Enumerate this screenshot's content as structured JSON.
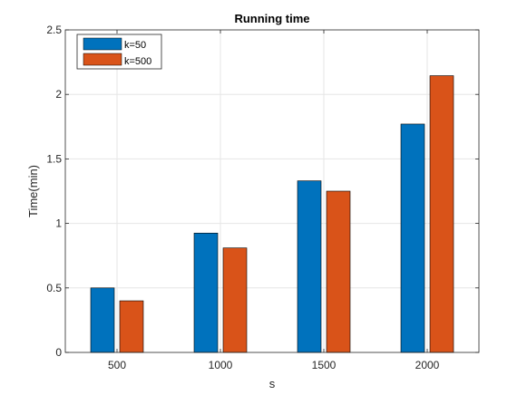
{
  "chart_data": {
    "type": "bar",
    "title": "Running time",
    "xlabel": "s",
    "ylabel": "Time(min)",
    "categories": [
      "500",
      "1000",
      "1500",
      "2000"
    ],
    "series": [
      {
        "name": "k=50",
        "color": "#0072BD",
        "values": [
          0.5,
          0.925,
          1.33,
          1.77
        ]
      },
      {
        "name": "k=500",
        "color": "#D95319",
        "values": [
          0.4,
          0.81,
          1.25,
          2.145
        ]
      }
    ],
    "ylim": [
      0,
      2.5
    ],
    "yticks": [
      "0",
      "0.5",
      "1",
      "1.5",
      "2",
      "2.5"
    ],
    "grid": true,
    "legend_position": "top-left"
  }
}
